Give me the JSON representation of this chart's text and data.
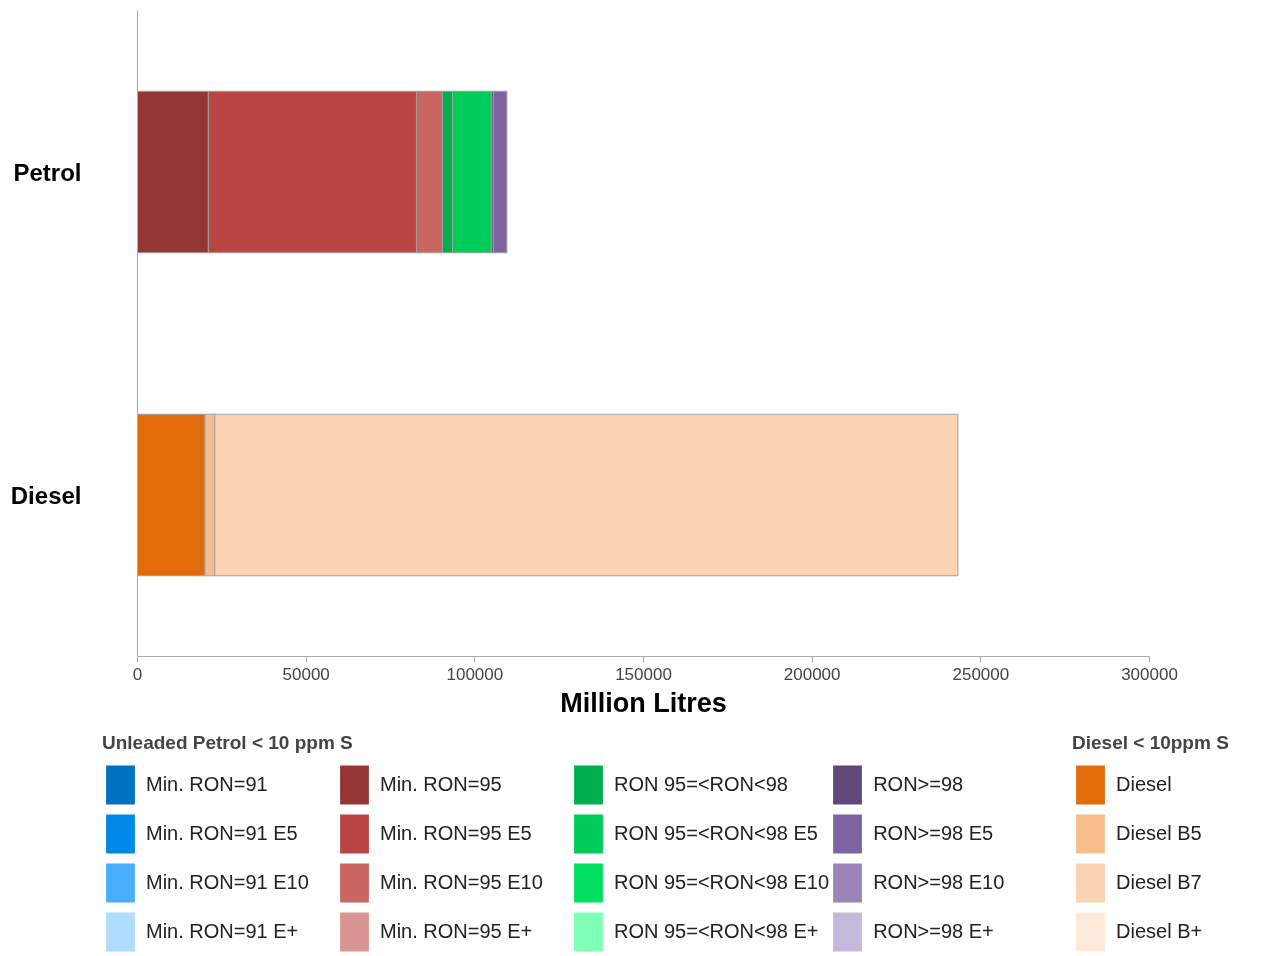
{
  "chart_data": {
    "type": "bar",
    "orientation": "horizontal",
    "stacked": true,
    "xlabel": "Million Litres",
    "categories": [
      "Petrol",
      "Diesel"
    ],
    "xlim": [
      0,
      300000
    ],
    "xticks": [
      0,
      50000,
      100000,
      150000,
      200000,
      250000,
      300000
    ],
    "grid": false,
    "legend": "bottom",
    "annotations": [
      "Unleaded Petrol < 10 ppm S",
      "Diesel < 10ppm S"
    ],
    "series": [
      {
        "name": "Min. RON=91",
        "color": "#0070c0",
        "values": [
          0,
          0
        ]
      },
      {
        "name": "Min. RON=91 E5",
        "color": "#0088e8",
        "values": [
          0,
          0
        ]
      },
      {
        "name": "Min. RON=91 E10",
        "color": "#4aaeff",
        "values": [
          0,
          0
        ]
      },
      {
        "name": "Min. RON=91 E+",
        "color": "#b0dcff",
        "values": [
          0,
          0
        ]
      },
      {
        "name": "Min. RON=95",
        "color": "#943634",
        "values": [
          21000,
          0
        ]
      },
      {
        "name": "Min. RON=95 E5",
        "color": "#b94542",
        "values": [
          61700,
          0
        ]
      },
      {
        "name": "Min. RON=95 E10",
        "color": "#c96660",
        "values": [
          7700,
          0
        ]
      },
      {
        "name": "Min. RON=95 E+",
        "color": "#d99594",
        "values": [
          0,
          0
        ]
      },
      {
        "name": "RON 95=<RON<98",
        "color": "#00b050",
        "values": [
          3000,
          0
        ]
      },
      {
        "name": "RON 95=<RON<98 E5",
        "color": "#00cc5a",
        "values": [
          11500,
          0
        ]
      },
      {
        "name": "RON 95=<RON<98 E10",
        "color": "#00e060",
        "values": [
          0,
          0
        ]
      },
      {
        "name": "RON 95=<RON<98 E+",
        "color": "#80ffb8",
        "values": [
          0,
          0
        ]
      },
      {
        "name": "RON>=98",
        "color": "#5f497a",
        "values": [
          600,
          0
        ]
      },
      {
        "name": "RON>=98 E5",
        "color": "#7e63a2",
        "values": [
          4000,
          0
        ]
      },
      {
        "name": "RON>=98 E10",
        "color": "#9b85b8",
        "values": [
          0,
          0
        ]
      },
      {
        "name": "RON>=98 E+",
        "color": "#c5b8da",
        "values": [
          0,
          0
        ]
      },
      {
        "name": "Diesel",
        "color": "#e36c0a",
        "values": [
          0,
          20000
        ]
      },
      {
        "name": "Diesel B5",
        "color": "#f8bd8d",
        "values": [
          0,
          2900
        ]
      },
      {
        "name": "Diesel B7",
        "color": "#fbd4b4",
        "values": [
          0,
          220300
        ]
      },
      {
        "name": "Diesel B+",
        "color": "#fde9d9",
        "values": [
          0,
          0
        ]
      }
    ]
  }
}
